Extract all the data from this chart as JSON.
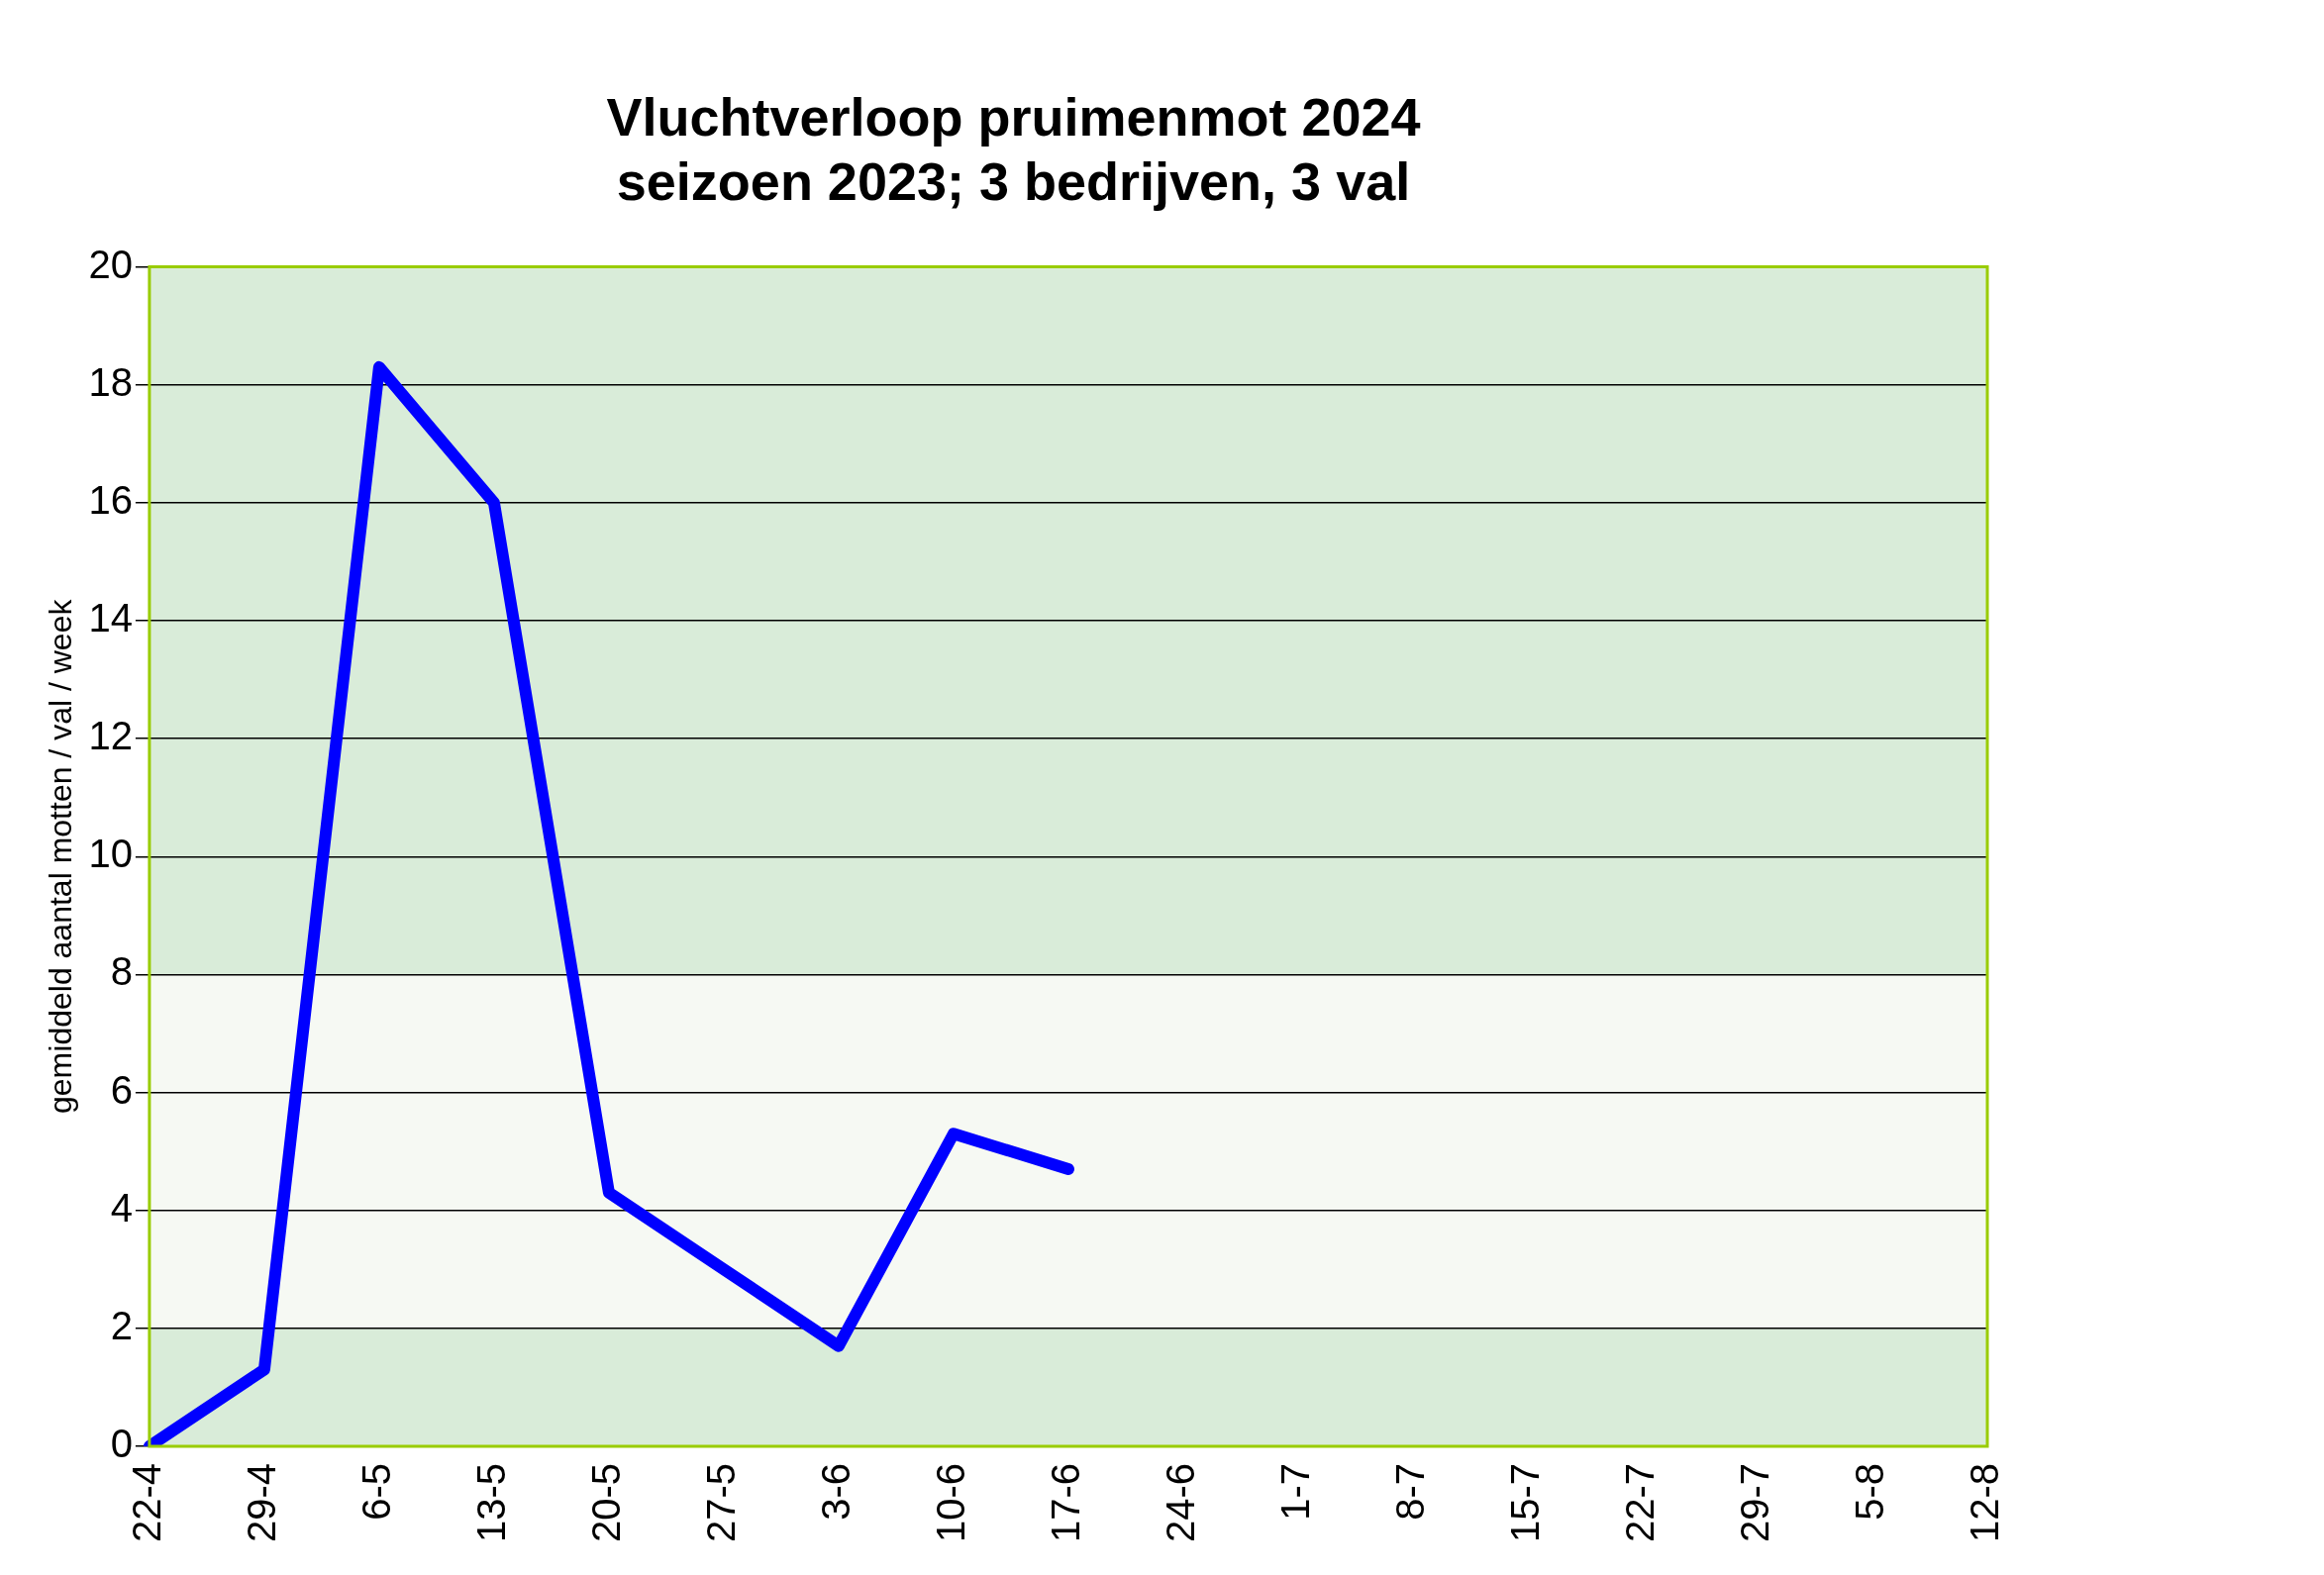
{
  "chart_data": {
    "type": "line",
    "title": [
      "Vluchtverloop pruimenmot 2024",
      "seizoen 2023; 3 bedrijven, 3 val"
    ],
    "ylabel": "gemiddeld aantal motten / val / week",
    "categories": [
      "22-4",
      "29-4",
      "6-5",
      "13-5",
      "20-5",
      "27-5",
      "3-6",
      "10-6",
      "17-6",
      "24-6",
      "1-7",
      "8-7",
      "15-7",
      "22-7",
      "29-7",
      "5-8",
      "12-8"
    ],
    "series": [
      {
        "color": "#0000ff",
        "values": [
          0,
          1.3,
          18.3,
          16,
          4.3,
          3,
          1.7,
          5.3,
          4.7,
          null,
          null,
          null,
          null,
          null,
          null,
          null,
          null
        ]
      }
    ],
    "ylim": [
      0,
      20
    ],
    "yticks": [
      0,
      2,
      4,
      6,
      8,
      10,
      12,
      14,
      16,
      18,
      20
    ],
    "grid": "y",
    "legend": false,
    "marker": "none",
    "line_style": "solid",
    "bands": [
      {
        "axis": "y",
        "from": 2,
        "to": 8,
        "color": "#f6f9f3"
      }
    ]
  }
}
